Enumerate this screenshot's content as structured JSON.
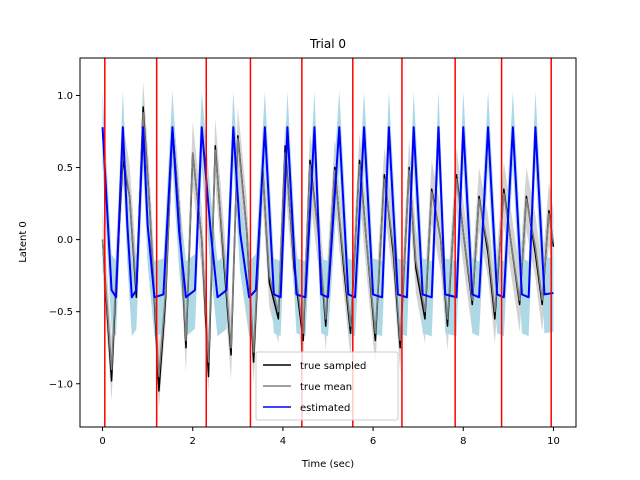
{
  "chart_data": {
    "type": "line",
    "title": "Trial 0",
    "xlabel": "Time (sec)",
    "ylabel": "Latent 0",
    "xlim": [
      -0.5,
      10.5
    ],
    "ylim": [
      -1.3,
      1.26
    ],
    "xticks": [
      0,
      2,
      4,
      6,
      8,
      10
    ],
    "xtick_labels": [
      "0",
      "2",
      "4",
      "6",
      "8",
      "10"
    ],
    "yticks": [
      -1.0,
      -0.5,
      0.0,
      0.5,
      1.0
    ],
    "ytick_labels": [
      "−1.0",
      "−0.5",
      "0.0",
      "0.5",
      "1.0"
    ],
    "grid": false,
    "legend_position": "bottom-center",
    "vertical_lines": {
      "color": "#ff0000",
      "x": [
        0.05,
        1.2,
        2.3,
        3.28,
        4.42,
        5.55,
        6.64,
        7.82,
        8.85,
        9.95
      ]
    },
    "series": [
      {
        "name": "true sampled",
        "color": "#000000",
        "x": [
          0,
          0.1,
          0.2,
          0.3,
          0.45,
          0.6,
          0.75,
          0.9,
          1.05,
          1.25,
          1.4,
          1.55,
          1.7,
          1.85,
          2.0,
          2.2,
          2.35,
          2.5,
          2.7,
          2.85,
          3.0,
          3.2,
          3.35,
          3.55,
          3.7,
          3.9,
          4.05,
          4.25,
          4.45,
          4.6,
          4.8,
          4.95,
          5.15,
          5.35,
          5.5,
          5.7,
          5.85,
          6.05,
          6.25,
          6.45,
          6.6,
          6.8,
          6.95,
          7.15,
          7.3,
          7.5,
          7.65,
          7.85,
          8.0,
          8.2,
          8.35,
          8.55,
          8.7,
          8.9,
          9.05,
          9.25,
          9.4,
          9.6,
          9.75,
          9.9,
          10.0
        ],
        "y": [
          0.0,
          -0.5,
          -0.98,
          -0.3,
          0.55,
          0.3,
          -0.4,
          0.92,
          0.2,
          -1.05,
          -0.4,
          0.78,
          0.2,
          -0.75,
          0.6,
          0.0,
          -0.95,
          0.65,
          -0.2,
          -0.8,
          0.72,
          0.05,
          -0.85,
          0.5,
          -0.3,
          -0.55,
          0.65,
          -0.2,
          -0.7,
          0.55,
          0.0,
          -0.6,
          0.5,
          -0.2,
          -0.65,
          0.55,
          0.0,
          -0.7,
          0.45,
          -0.1,
          -0.75,
          0.5,
          -0.2,
          -0.55,
          0.35,
          0.0,
          -0.6,
          0.45,
          0.05,
          -0.45,
          0.3,
          -0.1,
          -0.55,
          0.35,
          0.0,
          -0.45,
          0.3,
          -0.1,
          -0.45,
          0.2,
          -0.05
        ]
      },
      {
        "name": "true mean",
        "color": "#808080",
        "x": [
          0,
          0.1,
          0.2,
          0.3,
          0.45,
          0.6,
          0.75,
          0.9,
          1.05,
          1.25,
          1.4,
          1.55,
          1.7,
          1.85,
          2.0,
          2.2,
          2.35,
          2.5,
          2.7,
          2.85,
          3.0,
          3.2,
          3.35,
          3.55,
          3.7,
          3.9,
          4.05,
          4.25,
          4.45,
          4.6,
          4.8,
          4.95,
          5.15,
          5.35,
          5.5,
          5.7,
          5.85,
          6.05,
          6.25,
          6.45,
          6.6,
          6.8,
          6.95,
          7.15,
          7.3,
          7.5,
          7.65,
          7.85,
          8.0,
          8.2,
          8.35,
          8.55,
          8.7,
          8.9,
          9.05,
          9.25,
          9.4,
          9.6,
          9.75,
          9.9,
          10.0
        ],
        "y": [
          0.0,
          -0.45,
          -0.9,
          -0.25,
          0.6,
          0.3,
          -0.35,
          0.88,
          0.2,
          -0.95,
          -0.35,
          0.75,
          0.2,
          -0.7,
          0.6,
          0.0,
          -0.85,
          0.62,
          -0.15,
          -0.75,
          0.7,
          0.05,
          -0.78,
          0.48,
          -0.25,
          -0.5,
          0.6,
          -0.15,
          -0.65,
          0.52,
          0.0,
          -0.55,
          0.48,
          -0.15,
          -0.6,
          0.52,
          0.0,
          -0.65,
          0.42,
          -0.05,
          -0.7,
          0.48,
          -0.15,
          -0.5,
          0.33,
          0.0,
          -0.55,
          0.42,
          0.05,
          -0.42,
          0.28,
          -0.05,
          -0.5,
          0.32,
          0.0,
          -0.42,
          0.28,
          -0.05,
          -0.42,
          0.18,
          -0.02
        ]
      },
      {
        "name": "estimated",
        "color": "#0000ff",
        "x": [
          0,
          0.2,
          0.3,
          0.45,
          0.55,
          0.65,
          0.75,
          0.9,
          1.0,
          1.15,
          1.35,
          1.55,
          1.7,
          1.85,
          2.05,
          2.2,
          2.4,
          2.55,
          2.75,
          2.9,
          3.05,
          3.25,
          3.4,
          3.6,
          3.8,
          3.95,
          4.1,
          4.3,
          4.5,
          4.7,
          4.85,
          5.0,
          5.25,
          5.45,
          5.6,
          5.8,
          6.0,
          6.2,
          6.35,
          6.55,
          6.75,
          6.9,
          7.1,
          7.3,
          7.45,
          7.6,
          7.85,
          8.0,
          8.2,
          8.35,
          8.55,
          8.75,
          8.9,
          9.1,
          9.3,
          9.45,
          9.6,
          9.8,
          10.0
        ],
        "y": [
          0.78,
          -0.35,
          -0.4,
          0.78,
          0.1,
          -0.4,
          -0.35,
          0.78,
          0.1,
          -0.4,
          -0.38,
          0.78,
          0.05,
          -0.4,
          -0.35,
          0.78,
          0.05,
          -0.4,
          -0.35,
          0.78,
          0.05,
          -0.4,
          -0.35,
          0.78,
          -0.38,
          -0.4,
          0.78,
          -0.38,
          -0.4,
          0.78,
          -0.38,
          -0.4,
          0.78,
          -0.38,
          -0.4,
          0.78,
          -0.38,
          -0.4,
          0.78,
          -0.38,
          -0.4,
          0.78,
          -0.38,
          -0.4,
          0.78,
          -0.38,
          -0.4,
          0.78,
          -0.38,
          -0.4,
          0.78,
          -0.38,
          -0.4,
          0.78,
          -0.38,
          -0.4,
          0.78,
          -0.38,
          -0.37
        ]
      }
    ],
    "bands": [
      {
        "color": "#d3d3d3",
        "upper_offset": 0.22,
        "lower_offset": 0.22,
        "follows": "true mean"
      },
      {
        "color": "#add8e6",
        "upper_offset": 0.25,
        "lower_offset": 0.27,
        "follows": "estimated"
      }
    ]
  }
}
